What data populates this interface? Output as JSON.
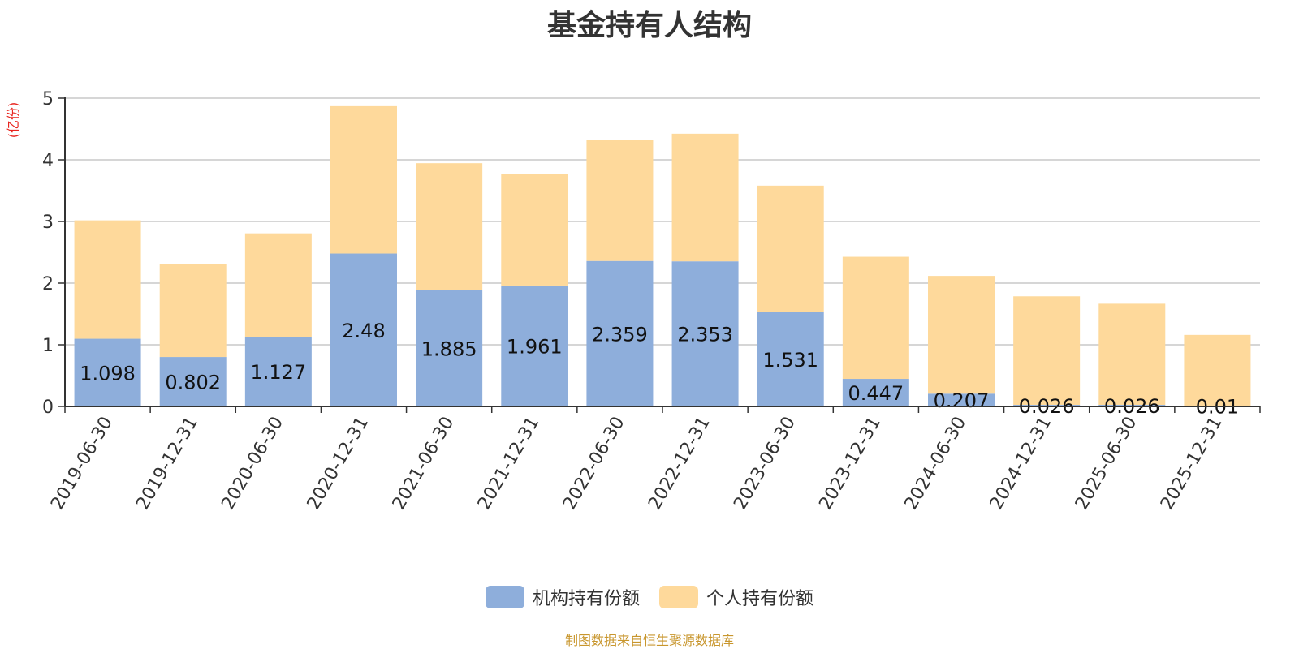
{
  "chart_data": {
    "type": "bar",
    "stacked": true,
    "title": "基金持有人结构",
    "ylabel": "(亿份)",
    "ylim": [
      0,
      5
    ],
    "yticks": [
      0,
      1,
      2,
      3,
      4,
      5
    ],
    "grid": true,
    "legend_position": "bottom-center",
    "categories": [
      "2019-06-30",
      "2019-12-31",
      "2020-06-30",
      "2020-12-31",
      "2021-06-30",
      "2021-12-31",
      "2022-06-30",
      "2022-12-31",
      "2023-06-30",
      "2023-12-31",
      "2024-06-30",
      "2024-12-31",
      "2025-06-30",
      "2025-12-31"
    ],
    "series": [
      {
        "name": "机构持有份额",
        "color": "#8eaedb",
        "values": [
          1.098,
          0.802,
          1.127,
          2.48,
          1.885,
          1.961,
          2.359,
          2.353,
          1.531,
          0.447,
          0.207,
          0.026,
          0.026,
          0.01
        ],
        "labels": [
          "1.098",
          "0.802",
          "1.127",
          "2.48",
          "1.885",
          "1.961",
          "2.359",
          "2.353",
          "1.531",
          "0.447",
          "0.207",
          "0.026",
          "0.026",
          "0.01"
        ]
      },
      {
        "name": "个人持有份额",
        "color": "#fed99b",
        "values": [
          1.92,
          1.51,
          1.68,
          2.39,
          2.06,
          1.81,
          1.96,
          2.07,
          2.05,
          1.98,
          1.91,
          1.76,
          1.64,
          1.15
        ]
      }
    ]
  },
  "source": "制图数据来自恒生聚源数据库"
}
